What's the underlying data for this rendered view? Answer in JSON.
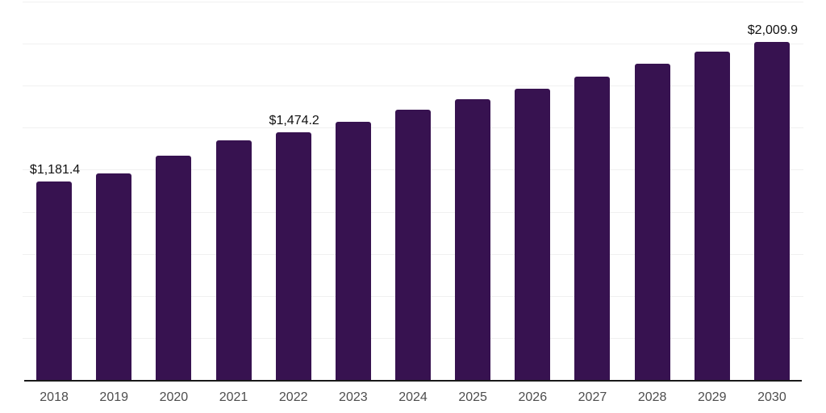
{
  "chart_data": {
    "type": "bar",
    "title": "",
    "xlabel": "",
    "ylabel": "",
    "categories": [
      "2018",
      "2019",
      "2020",
      "2021",
      "2022",
      "2023",
      "2024",
      "2025",
      "2026",
      "2027",
      "2028",
      "2029",
      "2030"
    ],
    "values": [
      1181.4,
      1230.4,
      1335.9,
      1424.7,
      1474.2,
      1535.0,
      1606.9,
      1667.8,
      1731.7,
      1803.6,
      1880.4,
      1952.3,
      2009.9
    ],
    "data_labels": [
      {
        "index": 0,
        "text": "$1,181.4"
      },
      {
        "index": 4,
        "text": "$1,474.2"
      },
      {
        "index": 12,
        "text": "$2,009.9"
      }
    ],
    "ylim": [
      0,
      2250
    ],
    "grid_interval": 250,
    "grid": true,
    "legend": false,
    "y_axis_labels_visible": false,
    "colors": {
      "bar": "#371250",
      "gridline": "#f0f0f0",
      "axis_line": "#1a1a1a",
      "value_label": "#111111",
      "tick_label": "#4d4d4d",
      "background": "#ffffff"
    }
  }
}
